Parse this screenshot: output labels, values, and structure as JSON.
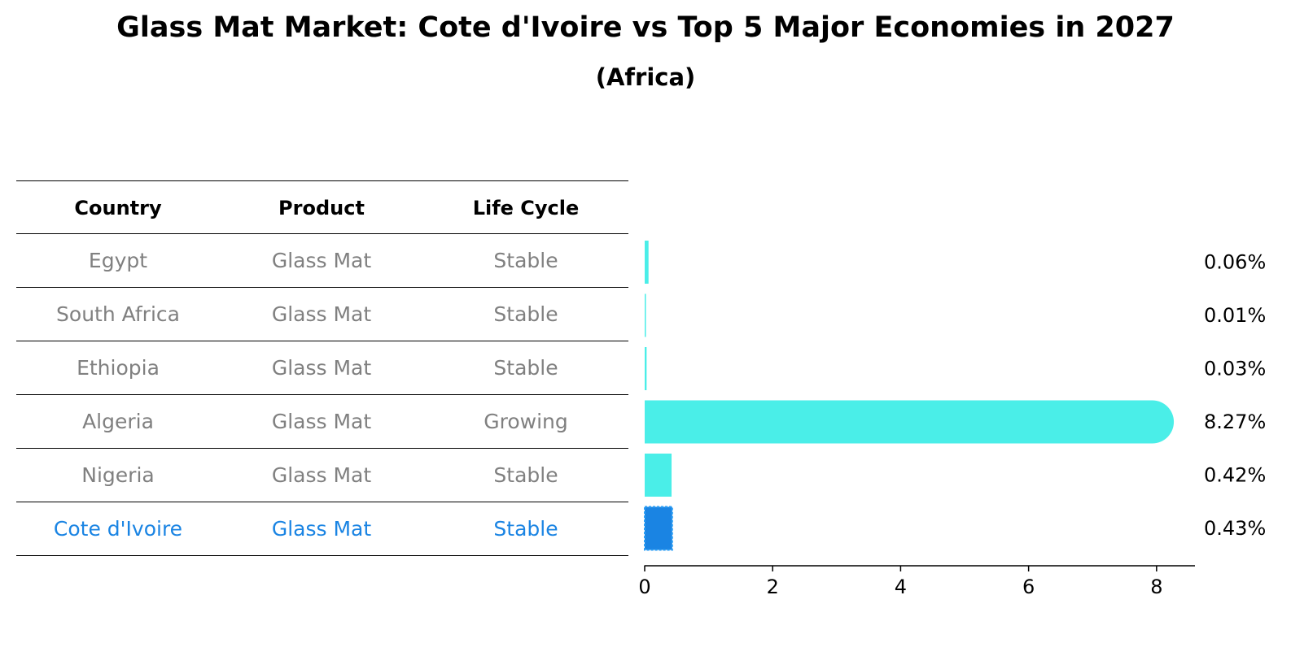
{
  "title": "Glass Mat Market: Cote d'Ivoire vs Top 5 Major Economies in 2027",
  "subtitle": "(Africa)",
  "table": {
    "headers": [
      "Country",
      "Product",
      "Life Cycle"
    ],
    "rows": [
      [
        "Egypt",
        "Glass Mat",
        "Stable"
      ],
      [
        "South Africa",
        "Glass Mat",
        "Stable"
      ],
      [
        "Ethiopia",
        "Glass Mat",
        "Stable"
      ],
      [
        "Algeria",
        "Glass Mat",
        "Growing"
      ],
      [
        "Nigeria",
        "Glass Mat",
        "Stable"
      ],
      [
        "Cote d'Ivoire",
        "Glass Mat",
        "Stable"
      ]
    ]
  },
  "colors": {
    "bar": "#4aeee8",
    "highlight": "#1a84e3",
    "muted_text": "#808080"
  },
  "chart_data": {
    "type": "bar",
    "orientation": "horizontal",
    "categories": [
      "Egypt",
      "South Africa",
      "Ethiopia",
      "Algeria",
      "Nigeria",
      "Cote d'Ivoire"
    ],
    "values": [
      0.06,
      0.01,
      0.03,
      8.27,
      0.42,
      0.43
    ],
    "value_labels": [
      "0.06%",
      "0.01%",
      "0.03%",
      "8.27%",
      "0.42%",
      "0.43%"
    ],
    "highlight": "Cote d'Ivoire",
    "xlim": [
      0,
      8.6
    ],
    "xticks": [
      "0",
      "2",
      "4",
      "6",
      "8"
    ],
    "xtick_values": [
      0,
      2,
      4,
      6,
      8
    ],
    "xlabel": "",
    "ylabel": "",
    "grid": false
  }
}
